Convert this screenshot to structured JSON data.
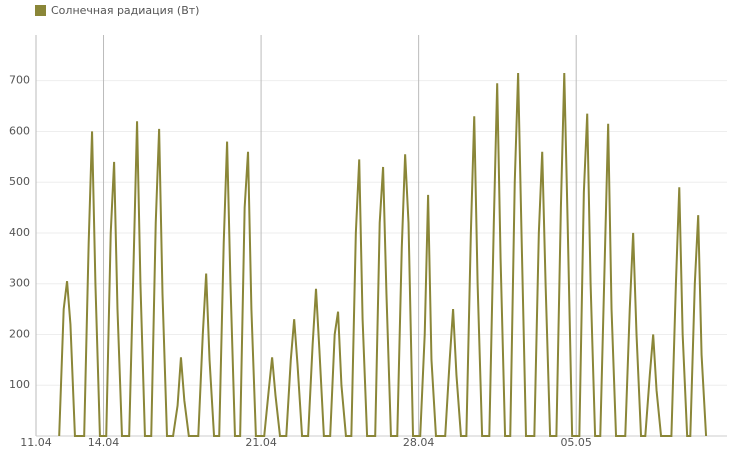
{
  "chart_data": {
    "type": "line",
    "x": [
      1.03,
      1.23,
      1.38,
      1.53,
      1.73,
      2.14,
      2.34,
      2.49,
      2.64,
      2.84,
      3.12,
      3.32,
      3.47,
      3.62,
      3.82,
      4.14,
      4.34,
      4.49,
      4.64,
      4.84,
      5.12,
      5.32,
      5.47,
      5.62,
      5.82,
      6.09,
      6.29,
      6.44,
      6.59,
      6.79,
      7.21,
      7.41,
      7.56,
      7.71,
      7.91,
      8.14,
      8.34,
      8.49,
      8.64,
      8.84,
      9.07,
      9.27,
      9.42,
      9.57,
      9.77,
      10.14,
      10.34,
      10.49,
      10.64,
      10.84,
      11.12,
      11.32,
      11.47,
      11.62,
      11.82,
      12.09,
      12.29,
      12.44,
      12.59,
      12.79,
      13.07,
      13.27,
      13.42,
      13.57,
      13.77,
      14.01,
      14.21,
      14.36,
      14.51,
      14.71,
      15.07,
      15.27,
      15.42,
      15.57,
      15.77,
      16.05,
      16.25,
      16.4,
      16.55,
      16.75,
      17.07,
      17.27,
      17.42,
      17.57,
      17.77,
      18.18,
      18.38,
      18.53,
      18.68,
      18.88,
      19.12,
      19.32,
      19.47,
      19.62,
      19.82,
      20.14,
      20.34,
      20.49,
      20.64,
      20.84,
      21.07,
      21.27,
      21.42,
      21.57,
      21.77,
      22.14,
      22.34,
      22.49,
      22.64,
      22.84,
      23.12,
      23.32,
      23.47,
      23.62,
      23.82,
      24.14,
      24.34,
      24.49,
      24.64,
      24.84,
      25.07,
      25.27,
      25.42,
      25.57,
      25.77,
      26.18,
      26.38,
      26.53,
      26.68,
      26.88,
      27.07,
      27.27,
      27.42,
      27.57,
      27.77,
      28.23,
      28.43,
      28.58,
      28.73,
      28.93,
      29.07,
      29.27,
      29.42,
      29.57,
      29.77
    ],
    "series": [
      {
        "name": "Солнечная радиация (Вт)",
        "color": "#8a8638",
        "values": [
          0,
          250,
          305,
          220,
          0,
          0,
          380,
          600,
          300,
          0,
          0,
          400,
          540,
          250,
          0,
          0,
          350,
          620,
          300,
          0,
          0,
          420,
          605,
          280,
          0,
          0,
          60,
          155,
          70,
          0,
          0,
          200,
          320,
          150,
          0,
          0,
          380,
          580,
          300,
          0,
          0,
          450,
          560,
          250,
          0,
          0,
          90,
          155,
          80,
          0,
          0,
          150,
          230,
          140,
          0,
          0,
          180,
          290,
          170,
          0,
          0,
          200,
          245,
          100,
          0,
          0,
          400,
          545,
          230,
          0,
          0,
          420,
          530,
          280,
          0,
          0,
          370,
          555,
          420,
          0,
          0,
          200,
          475,
          150,
          0,
          0,
          150,
          250,
          120,
          0,
          0,
          400,
          630,
          300,
          0,
          0,
          420,
          695,
          350,
          0,
          0,
          500,
          715,
          400,
          0,
          0,
          400,
          560,
          300,
          0,
          0,
          450,
          715,
          420,
          0,
          0,
          480,
          635,
          300,
          0,
          0,
          350,
          615,
          250,
          0,
          0,
          250,
          400,
          200,
          0,
          0,
          120,
          200,
          90,
          0,
          0,
          300,
          490,
          200,
          0,
          0,
          300,
          435,
          160,
          0
        ]
      }
    ],
    "xlim": [
      0,
      30.7
    ],
    "xticks": [
      {
        "value": 0,
        "label": "11.04"
      },
      {
        "value": 3,
        "label": "14.04"
      },
      {
        "value": 10,
        "label": "21.04"
      },
      {
        "value": 17,
        "label": "28.04"
      },
      {
        "value": 24,
        "label": "05.05"
      }
    ],
    "ylim": [
      0,
      790
    ],
    "yticks": [
      100,
      200,
      300,
      400,
      500,
      600,
      700
    ],
    "grid": true
  }
}
